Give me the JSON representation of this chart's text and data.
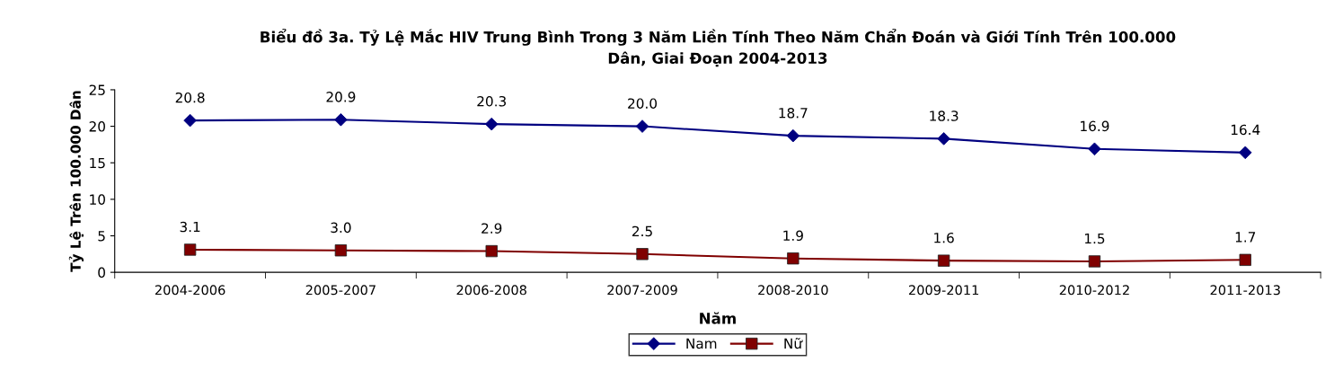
{
  "chart_data": {
    "type": "line",
    "title": "Biểu đồ 3a. Tỷ Lệ Mắc HIV Trung Bình Trong 3 Năm Liền Tính Theo Năm Chẩn Đoán và Giới Tính Trên 100.000\nDân, Giai Đoạn 2004-2013",
    "xlabel": "Năm",
    "ylabel": "Tỷ Lệ Trên 100.000 Dân",
    "categories": [
      "2004-2006",
      "2005-2007",
      "2006-2008",
      "2007-2009",
      "2008-2010",
      "2009-2011",
      "2010-2012",
      "2011-2013"
    ],
    "series": [
      {
        "name": "Nam",
        "color": "#000080",
        "marker": "diamond",
        "values": [
          20.8,
          20.9,
          20.3,
          20.0,
          18.7,
          18.3,
          16.9,
          16.4
        ],
        "value_labels": [
          "20.8",
          "20.9",
          "20.3",
          "20.0",
          "18.7",
          "18.3",
          "16.9",
          "16.4"
        ]
      },
      {
        "name": "Nữ",
        "color": "#800000",
        "marker": "square",
        "values": [
          3.1,
          3.0,
          2.9,
          2.5,
          1.9,
          1.6,
          1.5,
          1.7
        ],
        "value_labels": [
          "3.1",
          "3.0",
          "2.9",
          "2.5",
          "1.9",
          "1.6",
          "1.5",
          "1.7"
        ]
      }
    ],
    "ylim": [
      0,
      25
    ],
    "yticks": [
      0,
      5,
      10,
      15,
      20,
      25
    ],
    "legend": "bottom",
    "grid": false,
    "line_style": "solid"
  }
}
